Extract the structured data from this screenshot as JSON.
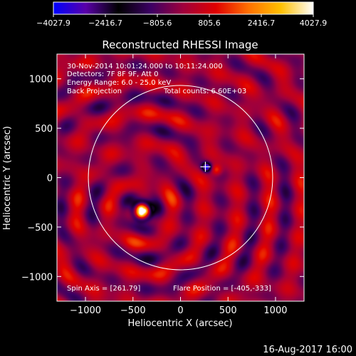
{
  "colorbar": {
    "ticks": [
      "−4027.9",
      "−2416.7",
      "−805.6",
      "805.6",
      "2416.7",
      "4027.9"
    ],
    "colors": [
      "#0000ff",
      "#5a00a8",
      "#000000",
      "#3c0064",
      "#a0003c",
      "#e00000",
      "#ff7000",
      "#ffc000",
      "#ffffff"
    ]
  },
  "plot": {
    "title": "Reconstructed RHESSI Image",
    "xlabel": "Heliocentric X (arcsec)",
    "ylabel": "Heliocentric Y (arcsec)",
    "xticks": [
      "−1000",
      "−500",
      "0",
      "500",
      "1000"
    ],
    "yticks": [
      "1000",
      "500",
      "0",
      "−500",
      "−1000"
    ],
    "xlim": [
      -1300,
      1300
    ],
    "ylim": [
      -1250,
      1250
    ],
    "info": {
      "line1": "30-Nov-2014 10:01:24.000 to 10:11:24.000",
      "line2": "Detectors: 7F 8F 9F, Att 0",
      "line3": "Energy Range: 6.0 - 25.0 keV",
      "line4_a": "Back Projection",
      "line4_b": "Total counts: 6.60E+03"
    },
    "spin_axis": "Spin Axis = [261.79]",
    "flare_position": "Flare Position = [-405,-333]",
    "solar_radius_arcsec": 970,
    "sources": [
      {
        "x": -405,
        "y": -333,
        "kind": "main"
      },
      {
        "x": 270,
        "y": 110,
        "kind": "secondary"
      }
    ],
    "cross": {
      "x": 262,
      "y": 110
    }
  },
  "footer": {
    "date": "16-Aug-2017 16:00"
  }
}
